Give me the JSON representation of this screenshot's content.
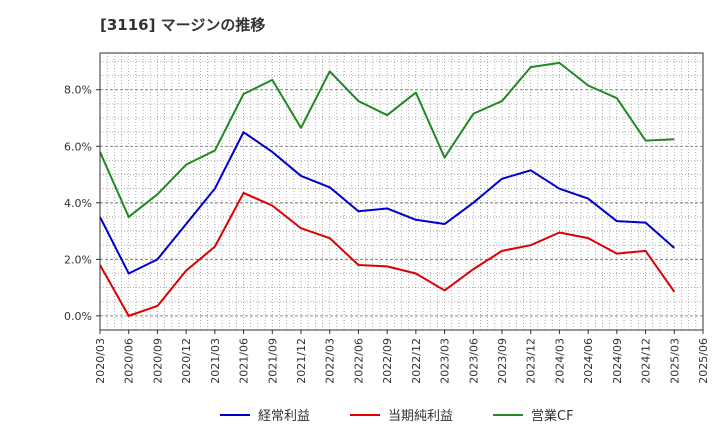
{
  "chart_data": {
    "type": "line",
    "title": "[3116]  マージンの推移",
    "xlabel": "",
    "ylabel": "",
    "x": [
      "2020/03",
      "2020/06",
      "2020/09",
      "2020/12",
      "2021/03",
      "2021/06",
      "2021/09",
      "2021/12",
      "2022/03",
      "2022/06",
      "2022/09",
      "2022/12",
      "2023/03",
      "2023/06",
      "2023/09",
      "2023/12",
      "2024/03",
      "2024/06",
      "2024/09",
      "2024/12",
      "2025/03",
      "2025/06"
    ],
    "ylim": [
      -0.5,
      9.3
    ],
    "yticks": [
      0,
      2,
      4,
      6,
      8
    ],
    "ytick_labels": [
      "0.0%",
      "2.0%",
      "4.0%",
      "6.0%",
      "8.0%"
    ],
    "grid": true,
    "legend_position": "bottom",
    "series": [
      {
        "name": "経常利益",
        "color": "#0000cc",
        "values": [
          3.5,
          1.5,
          2.0,
          3.25,
          4.5,
          6.5,
          5.8,
          4.95,
          4.55,
          3.7,
          3.8,
          3.4,
          3.25,
          4.0,
          4.85,
          5.15,
          4.5,
          4.15,
          3.35,
          3.3,
          2.4,
          null
        ]
      },
      {
        "name": "当期純利益",
        "color": "#dd0000",
        "values": [
          1.8,
          0.0,
          0.35,
          1.6,
          2.45,
          4.35,
          3.9,
          3.1,
          2.75,
          1.8,
          1.75,
          1.5,
          0.9,
          1.65,
          2.3,
          2.5,
          2.95,
          2.75,
          2.2,
          2.3,
          0.85,
          null
        ]
      },
      {
        "name": "営業CF",
        "color": "#228822",
        "values": [
          5.8,
          3.5,
          4.3,
          5.35,
          5.85,
          7.85,
          8.35,
          6.65,
          8.65,
          7.6,
          7.1,
          7.9,
          5.6,
          7.15,
          7.6,
          8.8,
          8.95,
          8.15,
          7.7,
          6.2,
          6.25,
          null
        ]
      }
    ]
  }
}
